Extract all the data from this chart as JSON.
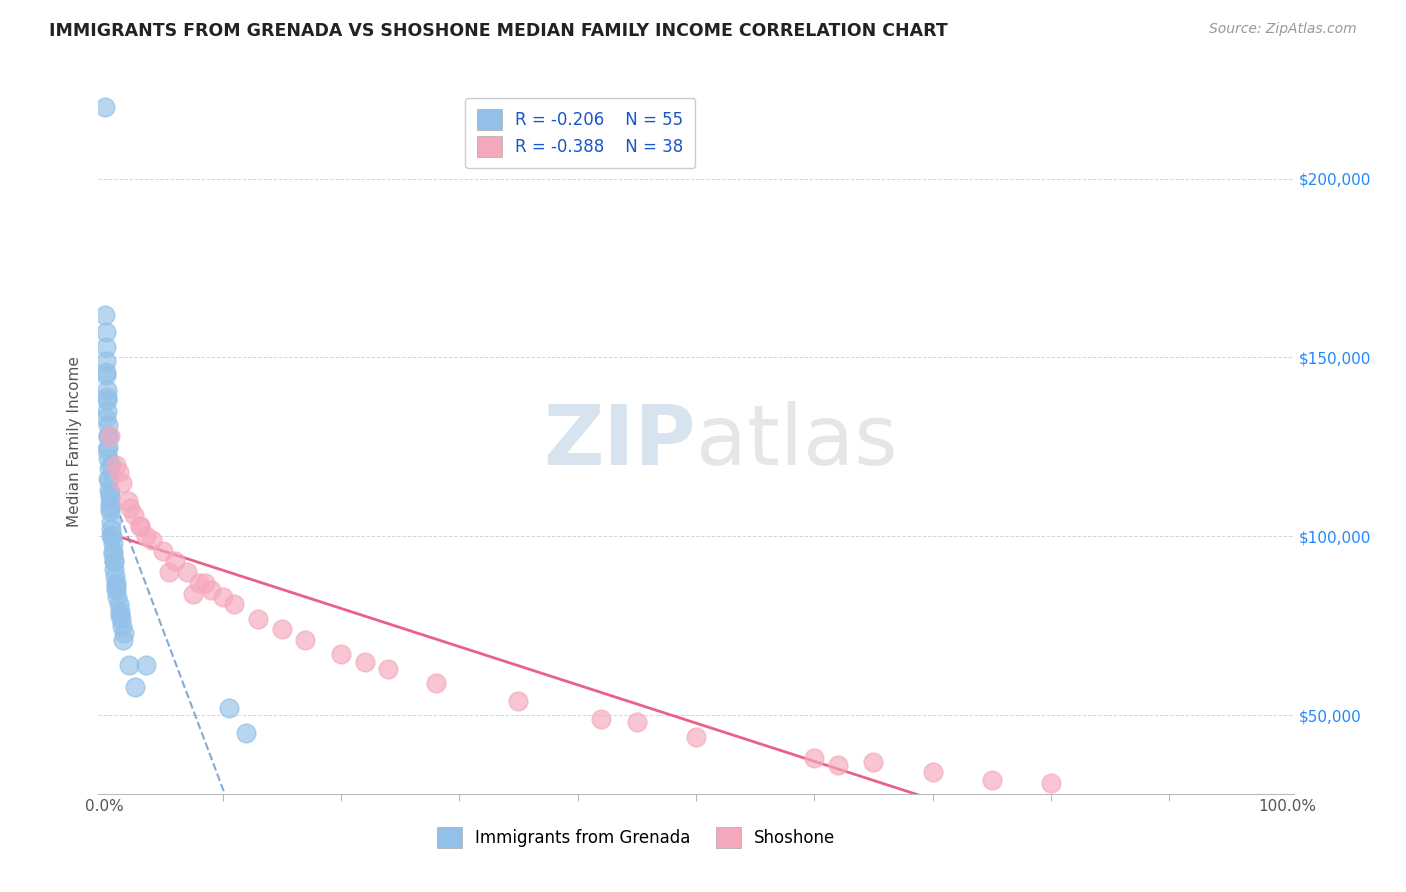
{
  "title": "IMMIGRANTS FROM GRENADA VS SHOSHONE MEDIAN FAMILY INCOME CORRELATION CHART",
  "source": "Source: ZipAtlas.com",
  "ylabel": "Median Family Income",
  "legend_labels": [
    "Immigrants from Grenada",
    "Shoshone"
  ],
  "legend_r_blue": "R = -0.206",
  "legend_r_pink": "R = -0.388",
  "legend_n_blue": "N = 55",
  "legend_n_pink": "N = 38",
  "blue_color": "#92C0E8",
  "pink_color": "#F5A8BC",
  "blue_line_color": "#5B8CC8",
  "pink_line_color": "#E8507A",
  "xlim_min": -0.5,
  "xlim_max": 100.5,
  "ylim_min": 28000,
  "ylim_max": 225000,
  "yticks": [
    50000,
    100000,
    150000,
    200000
  ],
  "ytick_labels": [
    "$50,000",
    "$100,000",
    "$150,000",
    "$200,000"
  ],
  "xtick_left_label": "0.0%",
  "xtick_right_label": "100.0%",
  "blue_x": [
    0.05,
    0.08,
    0.1,
    0.12,
    0.15,
    0.18,
    0.2,
    0.22,
    0.25,
    0.28,
    0.3,
    0.32,
    0.35,
    0.38,
    0.4,
    0.42,
    0.45,
    0.48,
    0.5,
    0.55,
    0.6,
    0.65,
    0.7,
    0.75,
    0.8,
    0.85,
    0.9,
    0.95,
    1.0,
    1.1,
    1.2,
    1.3,
    1.4,
    1.5,
    1.7,
    0.1,
    0.2,
    0.3,
    0.45,
    0.6,
    0.8,
    1.0,
    1.3,
    1.6,
    2.1,
    2.6,
    0.15,
    0.55,
    0.25,
    0.35,
    0.5,
    0.7,
    3.5,
    10.5,
    12.0
  ],
  "blue_y": [
    220000,
    162000,
    157000,
    153000,
    149000,
    145000,
    141000,
    139000,
    135000,
    131000,
    128000,
    125000,
    122000,
    119000,
    116000,
    113000,
    111000,
    109000,
    107000,
    104000,
    102000,
    100000,
    98000,
    95000,
    93000,
    91000,
    89000,
    87000,
    85000,
    83000,
    81000,
    79000,
    77000,
    75000,
    73000,
    133000,
    124000,
    116000,
    108000,
    100000,
    93000,
    86000,
    78000,
    71000,
    64000,
    58000,
    146000,
    120000,
    138000,
    128000,
    112000,
    96000,
    64000,
    52000,
    45000
  ],
  "pink_x": [
    0.5,
    1.0,
    1.5,
    2.0,
    2.5,
    3.0,
    4.0,
    5.0,
    6.0,
    7.0,
    8.0,
    9.0,
    10.0,
    11.0,
    13.0,
    15.0,
    17.0,
    20.0,
    24.0,
    28.0,
    35.0,
    42.0,
    50.0,
    60.0,
    65.0,
    70.0,
    80.0,
    1.2,
    2.2,
    3.5,
    5.5,
    7.5,
    22.0,
    45.0,
    62.0,
    75.0,
    3.0,
    8.5
  ],
  "pink_y": [
    128000,
    120000,
    115000,
    110000,
    106000,
    103000,
    99000,
    96000,
    93000,
    90000,
    87000,
    85000,
    83000,
    81000,
    77000,
    74000,
    71000,
    67000,
    63000,
    59000,
    54000,
    49000,
    44000,
    38000,
    37000,
    34000,
    31000,
    118000,
    108000,
    100000,
    90000,
    84000,
    65000,
    48000,
    36000,
    32000,
    103000,
    87000
  ],
  "watermark_zip": "ZIP",
  "watermark_atlas": "atlas",
  "bg_color": "#FFFFFF",
  "grid_color": "#CCCCCC",
  "title_color": "#222222",
  "axis_label_color": "#555555",
  "ytick_color": "#2288FF",
  "xtick_color": "#555555",
  "legend_text_color": "#1A55CC",
  "source_color": "#999999"
}
